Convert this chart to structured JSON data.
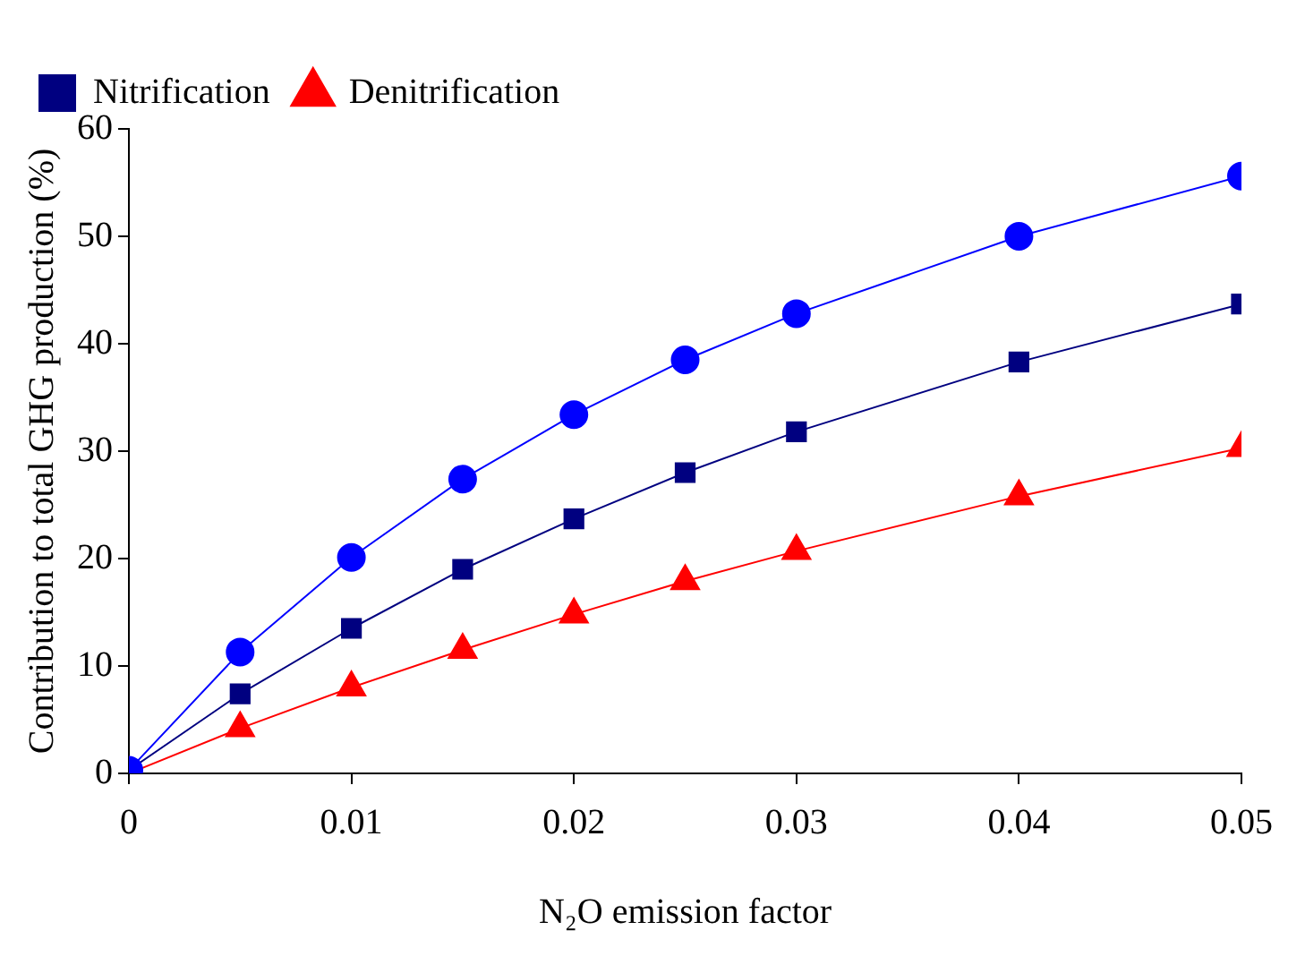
{
  "chart_data": {
    "type": "line",
    "xlabel": "N₂O emission factor",
    "ylabel": "Contribution to total GHG production (%)",
    "x": [
      0,
      0.005,
      0.01,
      0.015,
      0.02,
      0.025,
      0.03,
      0.04,
      0.05
    ],
    "series": [
      {
        "color": "#0000ff",
        "marker": "circle",
        "values": [
          0.3,
          11.3,
          20.1,
          27.4,
          33.4,
          38.5,
          42.8,
          50.0,
          55.6
        ]
      },
      {
        "name": "Nitrification",
        "color": "#000080",
        "marker": "square",
        "values": [
          0.3,
          7.4,
          13.5,
          19.0,
          23.7,
          28.0,
          31.8,
          38.3,
          43.7
        ]
      },
      {
        "name": "Denitrification",
        "color": "#ff0000",
        "marker": "triangle",
        "values": [
          0,
          4.2,
          8.0,
          11.5,
          14.8,
          17.9,
          20.7,
          25.8,
          30.3
        ]
      }
    ],
    "xlim": [
      0,
      0.05
    ],
    "xticks": [
      0,
      0.01,
      0.02,
      0.03,
      0.04,
      0.05
    ],
    "ylim": [
      0,
      60
    ],
    "yticks": [
      0,
      10,
      20,
      30,
      40,
      50,
      60
    ],
    "grid": false,
    "legend": "top left"
  }
}
